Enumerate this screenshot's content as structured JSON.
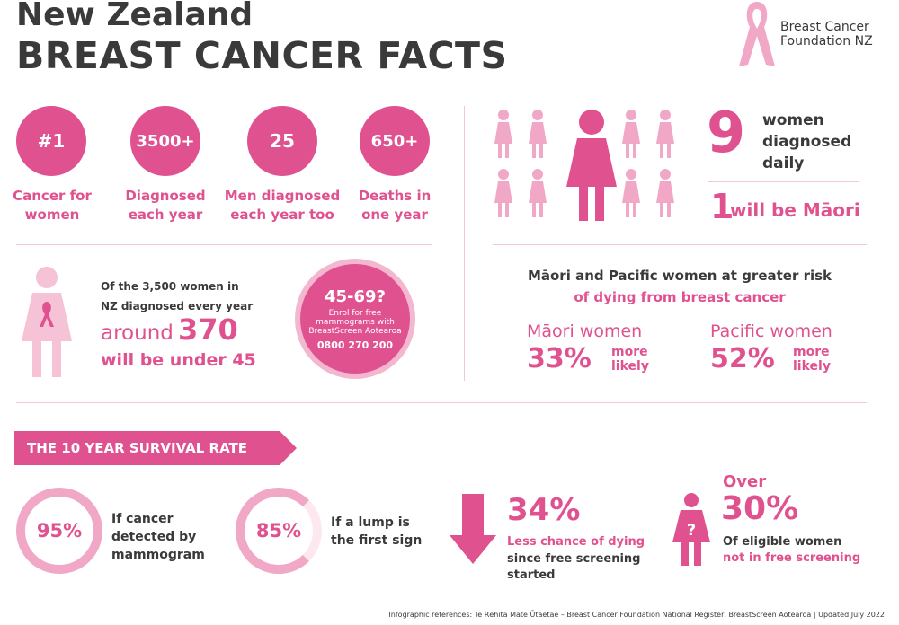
{
  "header": {
    "title_line1": "New Zealand",
    "title_line2": "BREAST CANCER FACTS",
    "logo_line1": "Breast Cancer",
    "logo_line2": "Foundation NZ"
  },
  "stats": [
    {
      "value": "#1",
      "label1": "Cancer for",
      "label2": "women"
    },
    {
      "value": "3500+",
      "label1": "Diagnosed",
      "label2": "each year"
    },
    {
      "value": "25",
      "label1": "Men diagnosed",
      "label2": "each year too"
    },
    {
      "value": "650+",
      "label1": "Deaths in",
      "label2": "one year"
    }
  ],
  "daily": {
    "number": "9",
    "text1": "women",
    "text2": "diagnosed",
    "text3": "daily",
    "maori_number": "1",
    "maori_text": "will be Māori"
  },
  "under45": {
    "line1": "Of the 3,500 women in",
    "line2": "NZ diagnosed every year",
    "around": "around",
    "number": "370",
    "line3": "will be under 45"
  },
  "screening_badge": {
    "age": "45-69?",
    "line1": "Enrol for free",
    "line2": "mammograms with",
    "line3": "BreastScreen Aotearoa",
    "phone": "0800 270 200"
  },
  "risk": {
    "heading1": "Māori and Pacific women at greater risk",
    "heading2": "of dying from breast cancer",
    "maori_label": "Māori women",
    "maori_pct": "33%",
    "pacific_label": "Pacific women",
    "pacific_pct": "52%",
    "more": "more",
    "likely": "likely"
  },
  "survival": {
    "banner": "THE 10 YEAR SURVIVAL RATE",
    "items": [
      {
        "pct": "95%",
        "l1": "If cancer",
        "l2": "detected by",
        "l3": "mammogram"
      },
      {
        "pct": "85%",
        "l1": "If a lump is",
        "l2": "the first sign",
        "l3": ""
      }
    ],
    "less": {
      "pct": "34%",
      "l1": "Less chance of dying",
      "l2": "since free screening",
      "l3": "started"
    },
    "over": {
      "over": "Over",
      "pct": "30%",
      "l1": "Of eligible women",
      "l2": "not in free screening"
    }
  },
  "footer": "Infographic references: Te Rēhita Mate Ūtaetae – Breast Cancer Foundation National Register, BreastScreen Aotearoa  |  Updated July 2022",
  "colors": {
    "accent": "#e0528f",
    "light": "#f1a7c6",
    "text": "#3a3a3a"
  }
}
